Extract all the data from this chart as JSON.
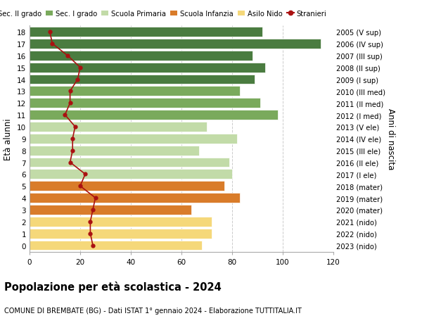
{
  "ages": [
    18,
    17,
    16,
    15,
    14,
    13,
    12,
    11,
    10,
    9,
    8,
    7,
    6,
    5,
    4,
    3,
    2,
    1,
    0
  ],
  "right_labels": [
    "2005 (V sup)",
    "2006 (IV sup)",
    "2007 (III sup)",
    "2008 (II sup)",
    "2009 (I sup)",
    "2010 (III med)",
    "2011 (II med)",
    "2012 (I med)",
    "2013 (V ele)",
    "2014 (IV ele)",
    "2015 (III ele)",
    "2016 (II ele)",
    "2017 (I ele)",
    "2018 (mater)",
    "2019 (mater)",
    "2020 (mater)",
    "2021 (nido)",
    "2022 (nido)",
    "2023 (nido)"
  ],
  "bar_values": [
    92,
    115,
    88,
    93,
    89,
    83,
    91,
    98,
    70,
    82,
    67,
    79,
    80,
    77,
    83,
    64,
    72,
    72,
    68
  ],
  "bar_colors": [
    "#4a7c40",
    "#4a7c40",
    "#4a7c40",
    "#4a7c40",
    "#4a7c40",
    "#7aaa5c",
    "#7aaa5c",
    "#7aaa5c",
    "#c2dba8",
    "#c2dba8",
    "#c2dba8",
    "#c2dba8",
    "#c2dba8",
    "#d97c2a",
    "#d97c2a",
    "#d97c2a",
    "#f5d87a",
    "#f5d87a",
    "#f5d87a"
  ],
  "stranieri_values": [
    8,
    9,
    15,
    20,
    19,
    16,
    16,
    14,
    18,
    17,
    17,
    16,
    22,
    20,
    26,
    25,
    24,
    24,
    25
  ],
  "xlim": [
    0,
    120
  ],
  "ylabel": "Età alunni",
  "right_ylabel": "Anni di nascita",
  "title": "Popolazione per età scolastica - 2024",
  "subtitle": "COMUNE DI BREMBATE (BG) - Dati ISTAT 1° gennaio 2024 - Elaborazione TUTTITALIA.IT",
  "legend_labels": [
    "Sec. II grado",
    "Sec. I grado",
    "Scuola Primaria",
    "Scuola Infanzia",
    "Asilo Nido",
    "Stranieri"
  ],
  "legend_colors": [
    "#4a7c40",
    "#7aaa5c",
    "#c2dba8",
    "#d97c2a",
    "#f5d87a",
    "#aa1111"
  ],
  "bg_color": "#ffffff",
  "grid_color": "#cccccc",
  "bar_height": 0.82,
  "stranieri_line_color": "#aa1111",
  "stranieri_dot_color": "#aa1111"
}
